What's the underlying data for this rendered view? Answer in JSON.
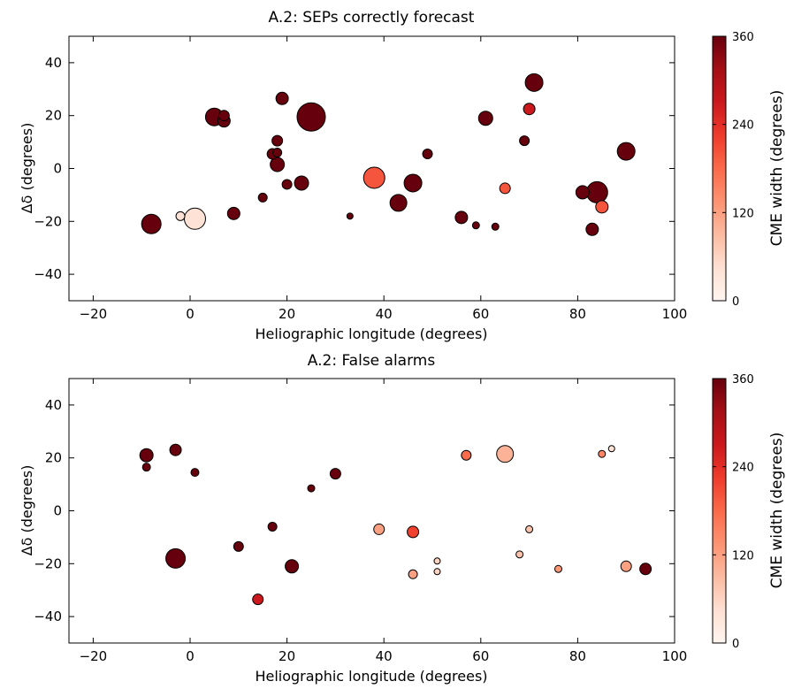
{
  "colormap": {
    "name": "Reds",
    "stops": [
      "#fff5f0",
      "#fee0d2",
      "#fcbba1",
      "#fc9272",
      "#fb6a4a",
      "#ef3b2c",
      "#cb181d",
      "#a50f15",
      "#67000d"
    ]
  },
  "chart_data": [
    {
      "type": "scatter",
      "title": "A.2: SEPs correctly forecast",
      "xlabel": "Heliographic longitude (degrees)",
      "ylabel": "Δδ (degrees)",
      "xlim": [
        -25,
        100
      ],
      "ylim": [
        -50,
        50
      ],
      "xticks": [
        -20,
        0,
        20,
        40,
        60,
        80,
        100
      ],
      "yticks": [
        -40,
        -20,
        0,
        20,
        40
      ],
      "xtick_labels": [
        "−20",
        "0",
        "20",
        "40",
        "60",
        "80",
        "100"
      ],
      "ytick_labels": [
        "−40",
        "−20",
        "0",
        "20",
        "40"
      ],
      "grid": false,
      "size_encoding": "marker size varies by event",
      "colorbar": {
        "label": "CME width (degrees)",
        "range": [
          0,
          360
        ],
        "ticks": [
          0,
          120,
          240,
          360
        ],
        "tick_labels": [
          "0",
          "120",
          "240",
          "360"
        ]
      },
      "points": [
        {
          "x": -8,
          "y": -21,
          "r": 11,
          "width": 360
        },
        {
          "x": -2,
          "y": -18,
          "r": 5,
          "width": 40
        },
        {
          "x": 1,
          "y": -19,
          "r": 12,
          "width": 40
        },
        {
          "x": 5,
          "y": 19.5,
          "r": 10,
          "width": 360
        },
        {
          "x": 7,
          "y": 20,
          "r": 6,
          "width": 360
        },
        {
          "x": 7,
          "y": 18,
          "r": 7,
          "width": 360
        },
        {
          "x": 9,
          "y": -17,
          "r": 7,
          "width": 360
        },
        {
          "x": 15,
          "y": -11,
          "r": 5,
          "width": 360
        },
        {
          "x": 17,
          "y": 5.5,
          "r": 6,
          "width": 360
        },
        {
          "x": 18,
          "y": 10.5,
          "r": 6,
          "width": 360
        },
        {
          "x": 18,
          "y": 6,
          "r": 5,
          "width": 360
        },
        {
          "x": 18,
          "y": 1.5,
          "r": 8,
          "width": 360
        },
        {
          "x": 19,
          "y": 26.5,
          "r": 7,
          "width": 360
        },
        {
          "x": 20,
          "y": -6,
          "r": 5.5,
          "width": 360
        },
        {
          "x": 23,
          "y": -5.5,
          "r": 8,
          "width": 360
        },
        {
          "x": 25,
          "y": 19.5,
          "r": 16,
          "width": 360
        },
        {
          "x": 33,
          "y": -18,
          "r": 3.5,
          "width": 360
        },
        {
          "x": 38,
          "y": -3.5,
          "r": 12,
          "width": 200
        },
        {
          "x": 43,
          "y": -13,
          "r": 9.5,
          "width": 360
        },
        {
          "x": 46,
          "y": -5.5,
          "r": 10,
          "width": 360
        },
        {
          "x": 49,
          "y": 5.5,
          "r": 5.5,
          "width": 360
        },
        {
          "x": 56,
          "y": -18.5,
          "r": 7,
          "width": 360
        },
        {
          "x": 59,
          "y": -21.5,
          "r": 4,
          "width": 360
        },
        {
          "x": 61,
          "y": 19,
          "r": 8,
          "width": 360
        },
        {
          "x": 63,
          "y": -22,
          "r": 4,
          "width": 360
        },
        {
          "x": 65,
          "y": -7.5,
          "r": 6,
          "width": 200
        },
        {
          "x": 69,
          "y": 10.5,
          "r": 5.5,
          "width": 360
        },
        {
          "x": 70,
          "y": 22.5,
          "r": 6.5,
          "width": 270
        },
        {
          "x": 71,
          "y": 32.5,
          "r": 10,
          "width": 360
        },
        {
          "x": 81,
          "y": -9,
          "r": 7.5,
          "width": 360
        },
        {
          "x": 83,
          "y": -23,
          "r": 7,
          "width": 360
        },
        {
          "x": 84,
          "y": -9,
          "r": 12,
          "width": 360
        },
        {
          "x": 85,
          "y": -14.5,
          "r": 7,
          "width": 200
        },
        {
          "x": 90,
          "y": 6.5,
          "r": 10,
          "width": 360
        }
      ]
    },
    {
      "type": "scatter",
      "title": "A.2: False alarms",
      "xlabel": "Heliographic longitude (degrees)",
      "ylabel": "Δδ (degrees)",
      "xlim": [
        -25,
        100
      ],
      "ylim": [
        -50,
        50
      ],
      "xticks": [
        -20,
        0,
        20,
        40,
        60,
        80,
        100
      ],
      "yticks": [
        -40,
        -20,
        0,
        20,
        40
      ],
      "xtick_labels": [
        "−20",
        "0",
        "20",
        "40",
        "60",
        "80",
        "100"
      ],
      "ytick_labels": [
        "−40",
        "−20",
        "0",
        "20",
        "40"
      ],
      "grid": false,
      "size_encoding": "marker size varies by event",
      "colorbar": {
        "label": "CME width (degrees)",
        "range": [
          0,
          360
        ],
        "ticks": [
          0,
          120,
          240,
          360
        ],
        "tick_labels": [
          "0",
          "120",
          "240",
          "360"
        ]
      },
      "points": [
        {
          "x": -9,
          "y": 21,
          "r": 7.5,
          "width": 360
        },
        {
          "x": -9,
          "y": 16.5,
          "r": 4.5,
          "width": 360
        },
        {
          "x": -3,
          "y": 23,
          "r": 6.5,
          "width": 360
        },
        {
          "x": -3,
          "y": -18,
          "r": 11,
          "width": 360
        },
        {
          "x": 1,
          "y": 14.5,
          "r": 4.5,
          "width": 360
        },
        {
          "x": 10,
          "y": -13.5,
          "r": 5.5,
          "width": 360
        },
        {
          "x": 14,
          "y": -33.5,
          "r": 6,
          "width": 270
        },
        {
          "x": 17,
          "y": -6,
          "r": 5,
          "width": 360
        },
        {
          "x": 21,
          "y": -21,
          "r": 7.5,
          "width": 360
        },
        {
          "x": 25,
          "y": 8.5,
          "r": 4,
          "width": 360
        },
        {
          "x": 30,
          "y": 14,
          "r": 6,
          "width": 360
        },
        {
          "x": 39,
          "y": -7,
          "r": 6,
          "width": 120
        },
        {
          "x": 46,
          "y": -8,
          "r": 6.5,
          "width": 220
        },
        {
          "x": 46,
          "y": -24,
          "r": 5,
          "width": 120
        },
        {
          "x": 51,
          "y": -19,
          "r": 3.5,
          "width": 60
        },
        {
          "x": 51,
          "y": -23,
          "r": 3.5,
          "width": 60
        },
        {
          "x": 57,
          "y": 21,
          "r": 5.5,
          "width": 180
        },
        {
          "x": 65,
          "y": 21.5,
          "r": 9.5,
          "width": 100
        },
        {
          "x": 68,
          "y": -16.5,
          "r": 4,
          "width": 80
        },
        {
          "x": 70,
          "y": -7,
          "r": 4,
          "width": 80
        },
        {
          "x": 76,
          "y": -22,
          "r": 4,
          "width": 130
        },
        {
          "x": 85,
          "y": 21.5,
          "r": 4,
          "width": 150
        },
        {
          "x": 87,
          "y": 23.5,
          "r": 3.5,
          "width": 40
        },
        {
          "x": 90,
          "y": -21,
          "r": 6,
          "width": 120
        },
        {
          "x": 94,
          "y": -22,
          "r": 6.5,
          "width": 360
        }
      ]
    }
  ]
}
